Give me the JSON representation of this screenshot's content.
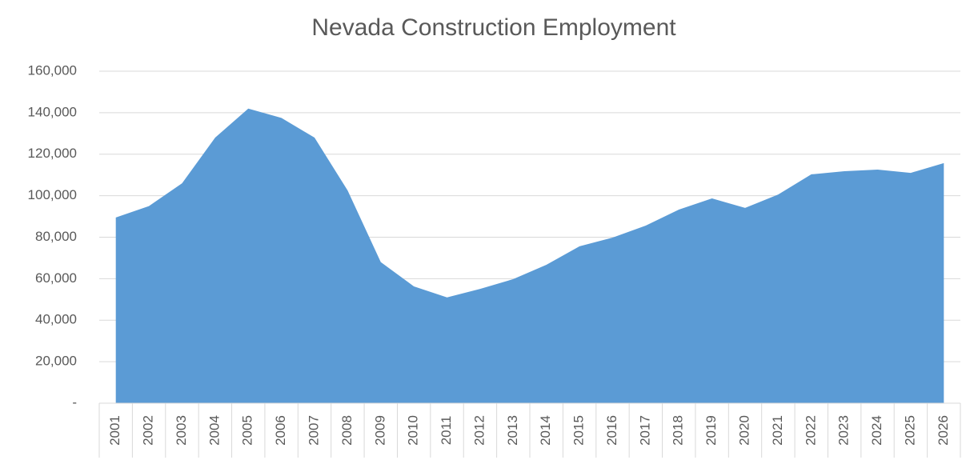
{
  "chart_data": {
    "type": "area",
    "title": "Nevada Construction Employment",
    "categories": [
      "2001",
      "2002",
      "2003",
      "2004",
      "2005",
      "2006",
      "2007",
      "2008",
      "2009",
      "2010",
      "2011",
      "2012",
      "2013",
      "2014",
      "2015",
      "2016",
      "2017",
      "2018",
      "2019",
      "2020",
      "2021",
      "2022",
      "2023",
      "2024",
      "2025",
      "2026"
    ],
    "values": [
      89500,
      95000,
      106000,
      128000,
      142000,
      137500,
      128000,
      102500,
      68000,
      56300,
      51000,
      55100,
      59800,
      66700,
      75600,
      79800,
      85600,
      93300,
      98700,
      94100,
      100600,
      110300,
      111800,
      112600,
      111000,
      115700
    ],
    "color": "#5b9bd5",
    "ylim": [
      0,
      160000
    ],
    "yticks": [
      {
        "value": 0,
        "label": "-"
      },
      {
        "value": 20000,
        "label": "20,000"
      },
      {
        "value": 40000,
        "label": "40,000"
      },
      {
        "value": 60000,
        "label": "60,000"
      },
      {
        "value": 80000,
        "label": "80,000"
      },
      {
        "value": 100000,
        "label": "100,000"
      },
      {
        "value": 120000,
        "label": "120,000"
      },
      {
        "value": 140000,
        "label": "140,000"
      },
      {
        "value": 160000,
        "label": "160,000"
      }
    ],
    "grid": true
  }
}
